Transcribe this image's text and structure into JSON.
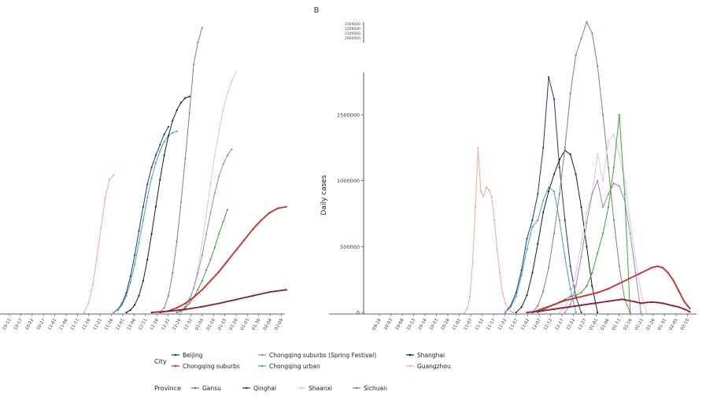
{
  "chart_data": [
    {
      "type": "line",
      "panel": "A",
      "title": "",
      "xlabel": "",
      "ylabel": "",
      "ylim": [
        0,
        2100000
      ],
      "x_tick_labels": [
        "10-12",
        "10-17",
        "10-22",
        "10-27",
        "11-01",
        "11-06",
        "11-11",
        "11-16",
        "11-21",
        "11-26",
        "12-01",
        "12-06",
        "12-11",
        "12-16",
        "12-21",
        "12-26",
        "12-31",
        "01-05",
        "01-10",
        "01-15",
        "01-20",
        "01-25",
        "01-30",
        "02-04",
        "02-09"
      ],
      "series": [
        {
          "name": "Guangzhou",
          "color": "#f4a896",
          "x": [
            20,
            21,
            22,
            23,
            24,
            25,
            26,
            27
          ],
          "y": [
            0,
            60000,
            180000,
            360000,
            560000,
            760000,
            880000,
            910000
          ]
        },
        {
          "name": "Beijing",
          "color": "#24366f",
          "x": [
            27,
            28,
            29,
            30,
            31,
            32,
            33,
            34,
            35,
            36,
            37,
            38,
            39,
            40
          ],
          "y": [
            0,
            20000,
            60000,
            130000,
            240000,
            380000,
            540000,
            700000,
            850000,
            960000,
            1040000,
            1110000,
            1180000,
            1230000
          ]
        },
        {
          "name": "Chongqing urban",
          "color": "#3da2c7",
          "x": [
            27,
            28,
            29,
            30,
            31,
            32,
            33,
            34,
            35,
            36,
            37,
            38,
            39,
            40,
            41,
            42
          ],
          "y": [
            0,
            15000,
            50000,
            110000,
            200000,
            320000,
            460000,
            610000,
            760000,
            890000,
            990000,
            1070000,
            1130000,
            1170000,
            1190000,
            1200000
          ]
        },
        {
          "name": "Shanghai",
          "color": "#1b1b1b",
          "x": [
            30,
            31,
            32,
            33,
            34,
            35,
            36,
            37,
            38,
            39,
            40,
            41,
            42,
            43,
            44,
            45
          ],
          "y": [
            0,
            15000,
            50000,
            110000,
            210000,
            350000,
            520000,
            700000,
            880000,
            1040000,
            1170000,
            1270000,
            1340000,
            1390000,
            1420000,
            1430000
          ]
        },
        {
          "name": "Sichuan",
          "color": "#8c7c6e",
          "x": [
            38,
            39,
            40,
            41,
            42,
            43,
            44,
            45,
            46,
            47,
            48
          ],
          "y": [
            0,
            30000,
            110000,
            260000,
            470000,
            730000,
            1020000,
            1320000,
            1620000,
            1880000,
            2050000
          ]
        },
        {
          "name": "Shaanxi",
          "color": "#d8c7d8",
          "x": [
            43,
            44,
            45,
            46,
            47,
            48,
            49,
            50,
            51,
            52,
            53,
            54,
            55,
            56
          ],
          "y": [
            0,
            20000,
            70000,
            160000,
            290000,
            460000,
            650000,
            850000,
            1040000,
            1200000,
            1340000,
            1450000,
            1530000,
            1590000
          ]
        },
        {
          "name": "Chongqing suburbs (Spring Festival)",
          "color": "#a682b8",
          "x": [
            42,
            43,
            44,
            45,
            46,
            47,
            48,
            49,
            50,
            51,
            52,
            53,
            54,
            55
          ],
          "y": [
            0,
            10000,
            40000,
            90000,
            160000,
            260000,
            380000,
            520000,
            660000,
            790000,
            900000,
            980000,
            1040000,
            1080000
          ]
        },
        {
          "name": "Gansu",
          "color": "#3aa63a",
          "x": [
            42,
            43,
            44,
            45,
            46,
            47,
            48,
            49,
            50,
            51,
            52,
            53,
            54
          ],
          "y": [
            0,
            10000,
            30000,
            60000,
            100000,
            150000,
            210000,
            280000,
            350000,
            430000,
            520000,
            600000,
            680000
          ]
        },
        {
          "name": "Chongqing suburbs",
          "color": "#d62828",
          "x": [
            38,
            40,
            42,
            44,
            46,
            48,
            50,
            52,
            54,
            56,
            58,
            60,
            62,
            64,
            66,
            68
          ],
          "y": [
            0,
            10000,
            30000,
            60000,
            100000,
            150000,
            210000,
            270000,
            340000,
            410000,
            480000,
            550000,
            610000,
            660000,
            690000,
            700000
          ]
        },
        {
          "name": "Qinghai",
          "color": "#8e1b3c",
          "x": [
            36,
            40,
            44,
            48,
            52,
            56,
            60,
            64,
            68
          ],
          "y": [
            0,
            8000,
            20000,
            38000,
            60000,
            85000,
            110000,
            135000,
            150000
          ]
        }
      ]
    },
    {
      "type": "line",
      "panel": "B",
      "title": "B",
      "xlabel": "",
      "ylabel": "Daily cases",
      "ylim": [
        0,
        2300000
      ],
      "y_tick_labels": [
        "0",
        "500000",
        "1000000",
        "1500000"
      ],
      "inset_tick_labels": [
        "2000000",
        "2100000",
        "2200000",
        "2300000"
      ],
      "x_tick_labels": [
        "09-28",
        "10-03",
        "10-08",
        "10-13",
        "10-18",
        "10-23",
        "10-28",
        "11-02",
        "11-07",
        "11-12",
        "11-17",
        "11-22",
        "11-27",
        "12-02",
        "12-07",
        "12-12",
        "12-17",
        "12-22",
        "12-27",
        "01-01",
        "01-06",
        "01-11",
        "01-16",
        "01-21",
        "01-26",
        "01-31",
        "02-05",
        "02-10"
      ],
      "series": [
        {
          "name": "Guangzhou",
          "color": "#f4a896",
          "x": [
            47,
            48,
            49,
            50,
            51,
            52,
            53,
            54,
            55,
            56,
            57,
            58,
            59,
            60,
            61,
            62,
            63,
            64,
            65
          ],
          "y": [
            0,
            30000,
            120000,
            380000,
            800000,
            1250000,
            920000,
            880000,
            950000,
            930000,
            880000,
            700000,
            480000,
            300000,
            150000,
            70000,
            30000,
            10000,
            0
          ]
        },
        {
          "name": "Beijing",
          "color": "#24366f",
          "x": [
            62,
            64,
            66,
            68,
            70,
            72,
            74,
            76,
            78,
            80,
            82,
            84,
            86,
            88,
            90
          ],
          "y": [
            0,
            50000,
            150000,
            320000,
            560000,
            700000,
            900000,
            1250000,
            1800000,
            1600000,
            1100000,
            700000,
            350000,
            120000,
            0
          ]
        },
        {
          "name": "Chongqing urban",
          "color": "#3da2c7",
          "x": [
            62,
            64,
            66,
            68,
            70,
            72,
            74,
            76,
            78,
            80,
            82,
            84,
            86,
            88
          ],
          "y": [
            0,
            40000,
            120000,
            280000,
            480000,
            650000,
            700000,
            850000,
            950000,
            920000,
            700000,
            420000,
            180000,
            0
          ]
        },
        {
          "name": "Shanghai",
          "color": "#1b1b1b",
          "x": [
            66,
            68,
            70,
            72,
            74,
            76,
            78,
            80,
            82,
            84,
            86,
            88,
            90,
            92,
            94,
            96
          ],
          "y": [
            0,
            40000,
            130000,
            300000,
            520000,
            760000,
            920000,
            1050000,
            1160000,
            1230000,
            1200000,
            1050000,
            800000,
            500000,
            200000,
            0
          ]
        },
        {
          "name": "Sichuan",
          "color": "#8c7c6e",
          "x": [
            72,
            74,
            76,
            78,
            80,
            82,
            84,
            86,
            88,
            90,
            92,
            94,
            96,
            98,
            100,
            102,
            104,
            106,
            108
          ],
          "y": [
            0,
            50000,
            160000,
            340000,
            600000,
            900000,
            1250000,
            1650000,
            2000000,
            2150000,
            2300000,
            2200000,
            1900000,
            1500000,
            1100000,
            700000,
            350000,
            100000,
            0
          ]
        },
        {
          "name": "Shaanxi",
          "color": "#d8c7d8",
          "x": [
            82,
            84,
            86,
            88,
            90,
            92,
            94,
            96,
            98,
            100,
            102,
            104,
            106,
            108,
            110,
            112,
            114
          ],
          "y": [
            0,
            40000,
            130000,
            300000,
            520000,
            760000,
            900000,
            1200000,
            1000000,
            1300000,
            1350000,
            1200000,
            1000000,
            700000,
            400000,
            150000,
            0
          ]
        },
        {
          "name": "Chongqing suburbs (Spring Festival)",
          "color": "#a682b8",
          "x": [
            84,
            86,
            88,
            90,
            92,
            94,
            96,
            98,
            100,
            102,
            104,
            106,
            108,
            110,
            112
          ],
          "y": [
            0,
            60000,
            200000,
            420000,
            680000,
            900000,
            1000000,
            800000,
            900000,
            980000,
            960000,
            850000,
            600000,
            300000,
            0
          ]
        },
        {
          "name": "Gansu",
          "color": "#3aa63a",
          "x": [
            74,
            76,
            78,
            80,
            82,
            84,
            86,
            88,
            90,
            92,
            94,
            96,
            98,
            100,
            102,
            104,
            106,
            108
          ],
          "y": [
            0,
            20000,
            40000,
            60000,
            80000,
            100000,
            120000,
            130000,
            150000,
            200000,
            300000,
            450000,
            600000,
            800000,
            1100000,
            1500000,
            900000,
            0
          ]
        },
        {
          "name": "Chongqing suburbs",
          "color": "#d62828",
          "x": [
            72,
            76,
            80,
            84,
            88,
            92,
            96,
            100,
            104,
            108,
            112,
            116,
            118,
            120,
            122,
            124,
            126,
            128,
            130
          ],
          "y": [
            0,
            30000,
            60000,
            90000,
            110000,
            130000,
            150000,
            180000,
            220000,
            260000,
            300000,
            340000,
            350000,
            340000,
            300000,
            240000,
            160000,
            80000,
            30000
          ]
        },
        {
          "name": "Qinghai",
          "color": "#8e1b3c",
          "x": [
            70,
            75,
            80,
            85,
            90,
            95,
            100,
            105,
            110,
            112,
            114,
            116,
            118,
            120,
            122,
            124,
            126,
            128,
            130
          ],
          "y": [
            0,
            10000,
            25000,
            40000,
            55000,
            70000,
            85000,
            100000,
            80000,
            70000,
            75000,
            78000,
            75000,
            70000,
            60000,
            50000,
            40000,
            25000,
            5000
          ]
        }
      ]
    }
  ],
  "legend": {
    "city_title": "City",
    "city_items": [
      {
        "label": "Beijing",
        "color": "#24366f"
      },
      {
        "label": "Chongqing suburbs (Spring Festival)",
        "color": "#a682b8"
      },
      {
        "label": "Shanghai",
        "color": "#1b1b1b"
      },
      {
        "label": "Chongqing suburbs",
        "color": "#d62828"
      },
      {
        "label": "Chongqing urban",
        "color": "#3da2c7"
      },
      {
        "label": "Guangzhou",
        "color": "#f4a896"
      }
    ],
    "province_title": "Province",
    "province_items": [
      {
        "label": "Gansu",
        "color": "#3aa63a"
      },
      {
        "label": "Qinghai",
        "color": "#8e1b3c"
      },
      {
        "label": "Shaanxi",
        "color": "#d8c7d8"
      },
      {
        "label": "Sichuan",
        "color": "#8c7c6e"
      }
    ]
  }
}
